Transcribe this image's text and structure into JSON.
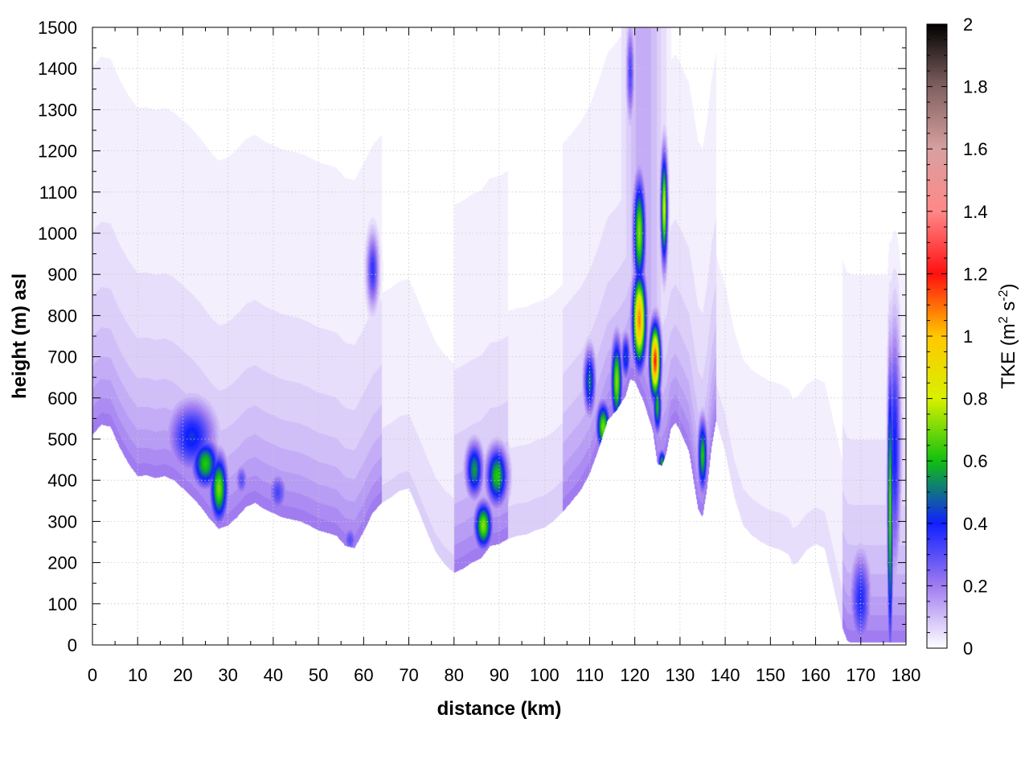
{
  "chart_data": {
    "type": "heatmap",
    "title": "",
    "xlabel": "distance (km)",
    "ylabel": "height (m) asl",
    "xlim": [
      0,
      180
    ],
    "ylim": [
      0,
      1500
    ],
    "x_ticks": [
      0,
      10,
      20,
      30,
      40,
      50,
      60,
      70,
      80,
      90,
      100,
      110,
      120,
      130,
      140,
      150,
      160,
      170,
      180
    ],
    "y_ticks": [
      0,
      100,
      200,
      300,
      400,
      500,
      600,
      700,
      800,
      900,
      1000,
      1100,
      1200,
      1300,
      1400,
      1500
    ],
    "grid": true,
    "colorbar": {
      "label": "TKE (m",
      "label_sup1": "2",
      "label_mid": " s",
      "label_sup2": "-2",
      "label_end": ")",
      "range": [
        0,
        2
      ],
      "ticks": [
        "0",
        "0.2",
        "0.4",
        "0.6",
        "0.8",
        "1",
        "1.2",
        "1.4",
        "1.6",
        "1.8",
        "2"
      ],
      "tick_values": [
        0,
        0.2,
        0.4,
        0.6,
        0.8,
        1.0,
        1.2,
        1.4,
        1.6,
        1.8,
        2.0
      ],
      "stops": [
        {
          "v": 0.0,
          "c": "#ffffff"
        },
        {
          "v": 0.2,
          "c": "#a07cf0"
        },
        {
          "v": 0.4,
          "c": "#1020ff"
        },
        {
          "v": 0.6,
          "c": "#10c010"
        },
        {
          "v": 0.8,
          "c": "#d8f000"
        },
        {
          "v": 1.0,
          "c": "#ffc800"
        },
        {
          "v": 1.2,
          "c": "#ff1010"
        },
        {
          "v": 1.4,
          "c": "#ff8888"
        },
        {
          "v": 1.6,
          "c": "#d8a0a0"
        },
        {
          "v": 1.8,
          "c": "#806060"
        },
        {
          "v": 2.0,
          "c": "#000000"
        }
      ]
    },
    "terrain": [
      [
        0,
        510
      ],
      [
        2,
        535
      ],
      [
        4,
        530
      ],
      [
        6,
        480
      ],
      [
        8,
        440
      ],
      [
        10,
        410
      ],
      [
        12,
        412
      ],
      [
        14,
        405
      ],
      [
        16,
        410
      ],
      [
        18,
        400
      ],
      [
        20,
        380
      ],
      [
        22,
        360
      ],
      [
        24,
        335
      ],
      [
        26,
        305
      ],
      [
        28,
        282
      ],
      [
        30,
        290
      ],
      [
        32,
        310
      ],
      [
        34,
        335
      ],
      [
        36,
        345
      ],
      [
        38,
        330
      ],
      [
        40,
        320
      ],
      [
        42,
        310
      ],
      [
        44,
        305
      ],
      [
        46,
        300
      ],
      [
        48,
        290
      ],
      [
        50,
        278
      ],
      [
        52,
        272
      ],
      [
        54,
        265
      ],
      [
        56,
        240
      ],
      [
        58,
        235
      ],
      [
        60,
        275
      ],
      [
        62,
        320
      ],
      [
        64,
        345
      ],
      [
        66,
        358
      ],
      [
        68,
        375
      ],
      [
        70,
        380
      ],
      [
        72,
        330
      ],
      [
        74,
        275
      ],
      [
        76,
        225
      ],
      [
        78,
        195
      ],
      [
        80,
        175
      ],
      [
        82,
        185
      ],
      [
        84,
        200
      ],
      [
        86,
        210
      ],
      [
        88,
        240
      ],
      [
        90,
        245
      ],
      [
        92,
        258
      ],
      [
        94,
        265
      ],
      [
        96,
        268
      ],
      [
        98,
        278
      ],
      [
        100,
        285
      ],
      [
        102,
        300
      ],
      [
        104,
        322
      ],
      [
        106,
        348
      ],
      [
        108,
        375
      ],
      [
        110,
        415
      ],
      [
        112,
        475
      ],
      [
        114,
        545
      ],
      [
        116,
        570
      ],
      [
        118,
        605
      ],
      [
        119,
        645
      ],
      [
        120,
        640
      ],
      [
        122,
        590
      ],
      [
        124,
        520
      ],
      [
        125,
        440
      ],
      [
        126,
        435
      ],
      [
        127,
        465
      ],
      [
        128,
        525
      ],
      [
        129,
        540
      ],
      [
        130,
        520
      ],
      [
        132,
        470
      ],
      [
        134,
        330
      ],
      [
        135,
        310
      ],
      [
        136,
        380
      ],
      [
        137,
        480
      ],
      [
        138,
        545
      ],
      [
        140,
        470
      ],
      [
        142,
        360
      ],
      [
        144,
        290
      ],
      [
        146,
        265
      ],
      [
        148,
        250
      ],
      [
        150,
        238
      ],
      [
        152,
        232
      ],
      [
        154,
        220
      ],
      [
        155,
        195
      ],
      [
        156,
        200
      ],
      [
        158,
        230
      ],
      [
        160,
        245
      ],
      [
        162,
        235
      ],
      [
        164,
        140
      ],
      [
        166,
        40
      ],
      [
        167,
        10
      ],
      [
        168,
        5
      ],
      [
        178,
        5
      ],
      [
        180,
        5
      ]
    ],
    "features": [
      {
        "x": 22,
        "y": 505,
        "sx": 3.6,
        "sy": 60,
        "v": 0.42
      },
      {
        "x": 25,
        "y": 440,
        "sx": 2.0,
        "sy": 40,
        "v": 0.62
      },
      {
        "x": 28,
        "y": 380,
        "sx": 1.3,
        "sy": 55,
        "v": 0.7
      },
      {
        "x": 33,
        "y": 400,
        "sx": 1.0,
        "sy": 28,
        "v": 0.3
      },
      {
        "x": 41,
        "y": 370,
        "sx": 1.5,
        "sy": 35,
        "v": 0.32
      },
      {
        "x": 57,
        "y": 255,
        "sx": 1.1,
        "sy": 25,
        "v": 0.3
      },
      {
        "x": 62,
        "y": 910,
        "sx": 0.9,
        "sy": 60,
        "v": 0.36
      },
      {
        "x": 84.5,
        "y": 425,
        "sx": 1.3,
        "sy": 45,
        "v": 0.55
      },
      {
        "x": 89.5,
        "y": 410,
        "sx": 1.6,
        "sy": 48,
        "v": 0.62
      },
      {
        "x": 86.5,
        "y": 290,
        "sx": 1.3,
        "sy": 38,
        "v": 0.72
      },
      {
        "x": 110,
        "y": 640,
        "sx": 0.9,
        "sy": 55,
        "v": 0.5
      },
      {
        "x": 113,
        "y": 530,
        "sx": 1.0,
        "sy": 40,
        "v": 0.7
      },
      {
        "x": 116,
        "y": 640,
        "sx": 0.8,
        "sy": 70,
        "v": 0.72
      },
      {
        "x": 118,
        "y": 700,
        "sx": 0.7,
        "sy": 40,
        "v": 0.45
      },
      {
        "x": 121,
        "y": 790,
        "sx": 1.0,
        "sy": 75,
        "v": 1.08
      },
      {
        "x": 121,
        "y": 1000,
        "sx": 0.9,
        "sy": 90,
        "v": 0.72
      },
      {
        "x": 119,
        "y": 1390,
        "sx": 0.6,
        "sy": 80,
        "v": 0.32
      },
      {
        "x": 124.5,
        "y": 690,
        "sx": 0.8,
        "sy": 60,
        "v": 1.18
      },
      {
        "x": 125,
        "y": 580,
        "sx": 0.6,
        "sy": 45,
        "v": 0.6
      },
      {
        "x": 126.5,
        "y": 1060,
        "sx": 0.5,
        "sy": 90,
        "v": 0.8
      },
      {
        "x": 126,
        "y": 445,
        "sx": 0.6,
        "sy": 20,
        "v": 0.55
      },
      {
        "x": 135,
        "y": 460,
        "sx": 0.7,
        "sy": 60,
        "v": 0.62
      },
      {
        "x": 170,
        "y": 110,
        "sx": 1.6,
        "sy": 80,
        "v": 0.38
      },
      {
        "x": 176.5,
        "y": 330,
        "sx": 0.4,
        "sy": 230,
        "v": 0.7
      },
      {
        "x": 177.5,
        "y": 480,
        "sx": 0.9,
        "sy": 200,
        "v": 0.4
      }
    ]
  }
}
